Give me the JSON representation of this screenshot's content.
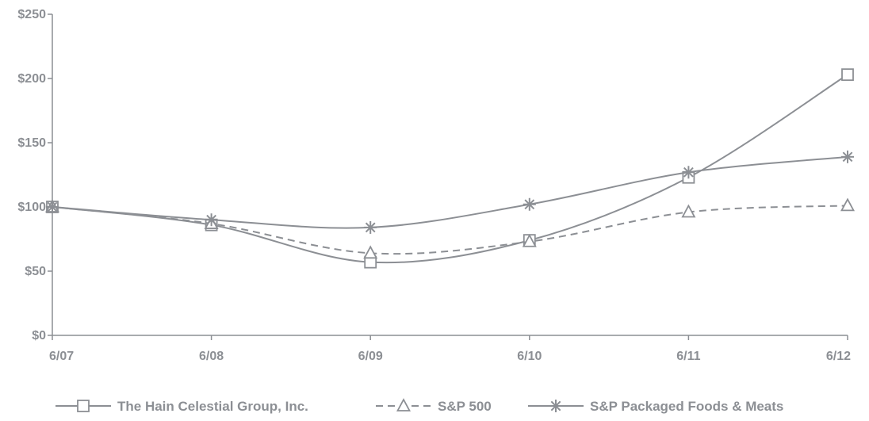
{
  "chart_data": {
    "type": "line",
    "categories": [
      "6/07",
      "6/08",
      "6/09",
      "6/10",
      "6/11",
      "6/12"
    ],
    "ylim": [
      0,
      250
    ],
    "yticks": [
      0,
      50,
      100,
      150,
      200,
      250
    ],
    "ytick_labels": [
      "$0",
      "$50",
      "$100",
      "$150",
      "$200",
      "$250"
    ],
    "grid": false,
    "legend_position": "bottom",
    "line_color": "#8c8f94",
    "series": [
      {
        "name": "The Hain Celestial Group, Inc.",
        "marker": "square",
        "dash": "solid",
        "values": [
          100,
          86,
          57,
          74,
          123,
          203
        ]
      },
      {
        "name": "S&P 500",
        "marker": "triangle",
        "dash": "dashed",
        "values": [
          100,
          87,
          64,
          73,
          96,
          101
        ]
      },
      {
        "name": "S&P Packaged Foods & Meats",
        "marker": "asterisk",
        "dash": "solid",
        "values": [
          100,
          90,
          84,
          102,
          127,
          139
        ]
      }
    ]
  }
}
